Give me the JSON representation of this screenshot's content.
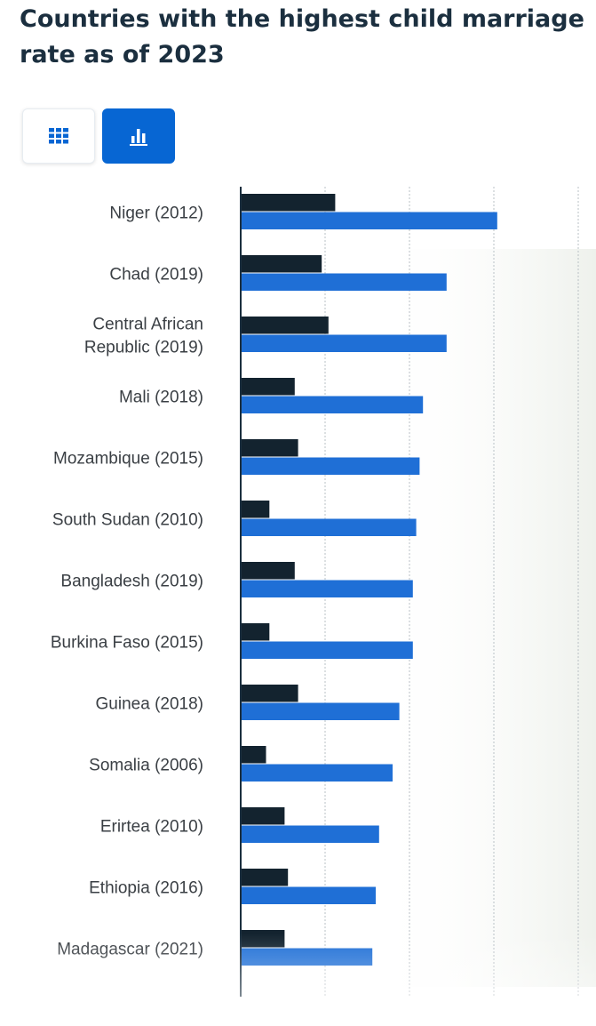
{
  "page": {
    "title": "Countries with the highest child marriage rate as of 2023",
    "view_toggle": {
      "table_icon": "grid-icon",
      "chart_icon": "bar-chart-icon",
      "active": "chart"
    }
  },
  "colors": {
    "series_dark": "#13232f",
    "series_blue": "#1f6fd6",
    "accent": "#0766d3",
    "title": "#1b2f3f"
  },
  "chart_data": {
    "type": "bar",
    "orientation": "horizontal",
    "categories": [
      "Niger (2012)",
      "Chad (2019)",
      "Central African Republic (2019)",
      "Mali (2018)",
      "Mozambique (2015)",
      "South Sudan (2010)",
      "Bangladesh (2019)",
      "Burkina Faso (2015)",
      "Guinea (2018)",
      "Somalia (2006)",
      "Erirtea (2010)",
      "Ethiopia (2016)",
      "Madagascar (2021)"
    ],
    "category_label_lines": [
      [
        "Niger (2012)"
      ],
      [
        "Chad (2019)"
      ],
      [
        "Central African",
        "Republic (2019)"
      ],
      [
        "Mali (2018)"
      ],
      [
        "Mozambique (2015)"
      ],
      [
        "South Sudan (2010)"
      ],
      [
        "Bangladesh (2019)"
      ],
      [
        "Burkina Faso (2015)"
      ],
      [
        "Guinea (2018)"
      ],
      [
        "Somalia (2006)"
      ],
      [
        "Erirtea (2010)"
      ],
      [
        "Ethiopia (2016)"
      ],
      [
        "Madagascar (2021)"
      ]
    ],
    "series": [
      {
        "values": [
          28,
          24,
          26,
          16,
          17,
          8.5,
          16,
          8.5,
          17,
          7.5,
          13,
          14,
          13
        ]
      },
      {
        "values": [
          76,
          61,
          61,
          54,
          53,
          52,
          51,
          51,
          47,
          45,
          41,
          40,
          39
        ]
      }
    ],
    "xlim": [
      0,
      100
    ],
    "grid": true,
    "legend": "none"
  }
}
